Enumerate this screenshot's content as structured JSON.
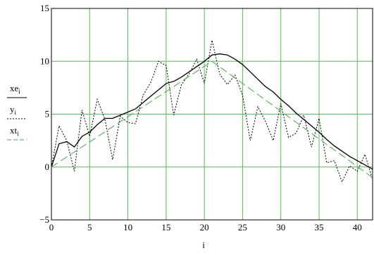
{
  "chart_data": {
    "type": "line",
    "xlabel": "i",
    "xlim": [
      0,
      42
    ],
    "ylim": [
      -5,
      15
    ],
    "x_ticks": [
      0,
      5,
      10,
      15,
      20,
      25,
      30,
      35,
      40
    ],
    "y_ticks": [
      -5,
      0,
      5,
      10,
      15
    ],
    "x_tick_labels": [
      "0",
      "5",
      "10",
      "15",
      "20",
      "25",
      "30",
      "35",
      "40"
    ],
    "y_tick_labels": [
      "−5",
      "0",
      "5",
      "10",
      "15"
    ],
    "grid": true,
    "grid_color": "#55bb55",
    "series": [
      {
        "name": "xe",
        "name_sub": "i",
        "style": "solid",
        "color": "#000000",
        "x": [
          0,
          1,
          2,
          3,
          4,
          5,
          6,
          7,
          8,
          9,
          10,
          11,
          12,
          13,
          14,
          15,
          16,
          17,
          18,
          19,
          20,
          21,
          22,
          23,
          24,
          25,
          26,
          27,
          28,
          29,
          30,
          31,
          32,
          33,
          34,
          35,
          36,
          37,
          38,
          39,
          40,
          41,
          42
        ],
        "y": [
          0,
          2.2,
          2.4,
          1.9,
          2.9,
          3.3,
          4.0,
          4.6,
          4.6,
          4.9,
          5.2,
          5.5,
          6.1,
          6.7,
          7.3,
          7.9,
          8.1,
          8.5,
          9.0,
          9.5,
          10.0,
          10.6,
          10.7,
          10.6,
          10.2,
          9.7,
          9.0,
          8.3,
          7.6,
          7.1,
          6.4,
          5.8,
          5.1,
          4.5,
          3.9,
          3.3,
          2.6,
          2.0,
          1.5,
          1.0,
          0.6,
          0.2,
          -0.2
        ]
      },
      {
        "name": "y",
        "name_sub": "i",
        "style": "dotted",
        "color": "#000000",
        "x": [
          0,
          1,
          2,
          3,
          4,
          5,
          6,
          7,
          8,
          9,
          10,
          11,
          12,
          13,
          14,
          15,
          16,
          17,
          18,
          19,
          20,
          21,
          22,
          23,
          24,
          25,
          26,
          27,
          28,
          29,
          30,
          31,
          32,
          33,
          34,
          35,
          36,
          37,
          38,
          39,
          40,
          41,
          42
        ],
        "y": [
          0,
          3.9,
          2.5,
          -0.4,
          5.4,
          2.9,
          6.4,
          4.5,
          0.7,
          4.8,
          4.2,
          4.1,
          6.8,
          8.0,
          10.0,
          9.6,
          4.9,
          7.8,
          8.8,
          10.2,
          7.9,
          12.0,
          8.8,
          7.8,
          8.7,
          6.8,
          2.5,
          5.7,
          4.3,
          2.5,
          6.0,
          2.8,
          3.2,
          4.9,
          1.9,
          4.6,
          0.4,
          0.6,
          -1.4,
          0.1,
          -0.4,
          1.2,
          -1.2
        ]
      },
      {
        "name": "xt",
        "name_sub": "i",
        "style": "dashed",
        "color": "#44aa44",
        "x": [
          0,
          21,
          42
        ],
        "y": [
          0,
          10.0,
          -1.0
        ]
      }
    ]
  }
}
